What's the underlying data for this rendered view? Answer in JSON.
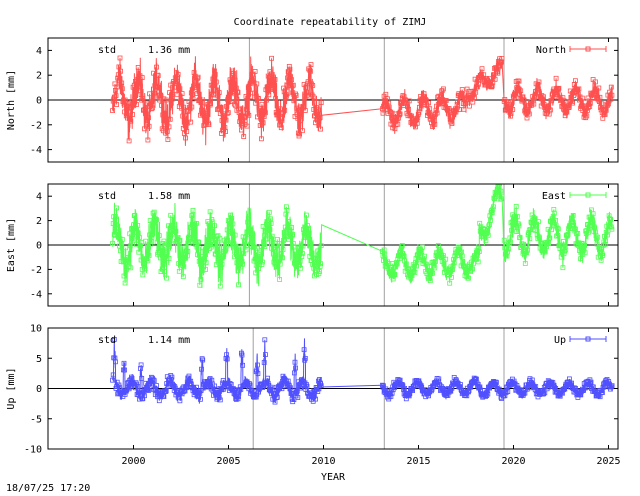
{
  "title": "Coordinate repeatability of ZIMJ",
  "timestamp": "18/07/25 17:20",
  "colors": {
    "North": "#ff5050",
    "East": "#50ff50",
    "Up": "#5050ff"
  },
  "chart_data": [
    {
      "type": "line",
      "xlabel": "YEAR",
      "ylabel": "North [mm]",
      "xlim": [
        1995.5,
        2025.5
      ],
      "ylim": [
        -5,
        5
      ],
      "yticks": [
        -4,
        -2,
        0,
        2,
        4
      ],
      "xticks": [
        2000,
        2005,
        2010,
        2015,
        2020,
        2025
      ],
      "grid": "vertical lines at 2006.1, 2013.2, 2019.5",
      "vlines": [
        2006.1,
        2013.2,
        2019.5
      ],
      "annotation": {
        "label": "std",
        "value": "1.36 mm"
      },
      "legend": {
        "position": "top-right"
      },
      "series": [
        {
          "name": "North",
          "segments": [
            {
              "from": 1998.9,
              "to": 2009.9,
              "level": 0,
              "amp": 1.7,
              "noise": 1.3,
              "trend": 0
            },
            {
              "from": 2013.1,
              "to": 2017.5,
              "level": -0.8,
              "amp": 0.9,
              "noise": 0.6,
              "trend": 0.25
            },
            {
              "from": 2017.5,
              "to": 2019.4,
              "level": 1.5,
              "amp": 0.6,
              "noise": 0.5,
              "trend": 1.0
            },
            {
              "from": 2019.5,
              "to": 2025.2,
              "level": 0,
              "amp": 0.9,
              "noise": 0.6,
              "trend": 0
            }
          ]
        }
      ]
    },
    {
      "type": "line",
      "xlabel": "YEAR",
      "ylabel": "East [mm]",
      "xlim": [
        1995.5,
        2025.5
      ],
      "ylim": [
        -5,
        5
      ],
      "yticks": [
        -4,
        -2,
        0,
        2,
        4
      ],
      "xticks": [
        2000,
        2005,
        2010,
        2015,
        2020,
        2025
      ],
      "vlines": [
        2006.1,
        2013.2,
        2019.5
      ],
      "annotation": {
        "label": "std",
        "value": "1.58 mm"
      },
      "legend": {
        "position": "top-right"
      },
      "series": [
        {
          "name": "East",
          "segments": [
            {
              "from": 1998.9,
              "to": 2009.9,
              "level": 0,
              "amp": 1.6,
              "noise": 1.4,
              "trend": 0
            },
            {
              "from": 2013.1,
              "to": 2018.2,
              "level": -1.5,
              "amp": 0.9,
              "noise": 0.6,
              "trend": 0.1
            },
            {
              "from": 2018.2,
              "to": 2019.4,
              "level": 2.5,
              "amp": 0.8,
              "noise": 0.6,
              "trend": 2.0
            },
            {
              "from": 2019.5,
              "to": 2025.2,
              "level": 0.7,
              "amp": 1.4,
              "noise": 0.7,
              "trend": 0
            }
          ]
        }
      ]
    },
    {
      "type": "line",
      "xlabel": "YEAR",
      "ylabel": "Up [mm]",
      "xlim": [
        1995.5,
        2025.5
      ],
      "ylim": [
        -10,
        10
      ],
      "yticks": [
        -10,
        -5,
        0,
        5,
        10
      ],
      "xticks": [
        2000,
        2005,
        2010,
        2015,
        2020,
        2025
      ],
      "vlines": [
        2006.3,
        2013.2,
        2019.5
      ],
      "annotation": {
        "label": "std",
        "value": "1.14 mm"
      },
      "legend": {
        "position": "top-right"
      },
      "series": [
        {
          "name": "Up",
          "segments": [
            {
              "from": 1998.9,
              "to": 2009.9,
              "level": 0,
              "amp": 1.2,
              "noise": 0.9,
              "trend": 0
            },
            {
              "from": 2013.1,
              "to": 2025.2,
              "level": 0,
              "amp": 1.0,
              "noise": 0.6,
              "trend": 0
            }
          ],
          "spikes": [
            1999.0,
            1999.5,
            2000.4,
            2003.6,
            2004.9,
            2005.7,
            2006.5,
            2006.9,
            2008.5,
            2009.0
          ]
        }
      ]
    }
  ]
}
